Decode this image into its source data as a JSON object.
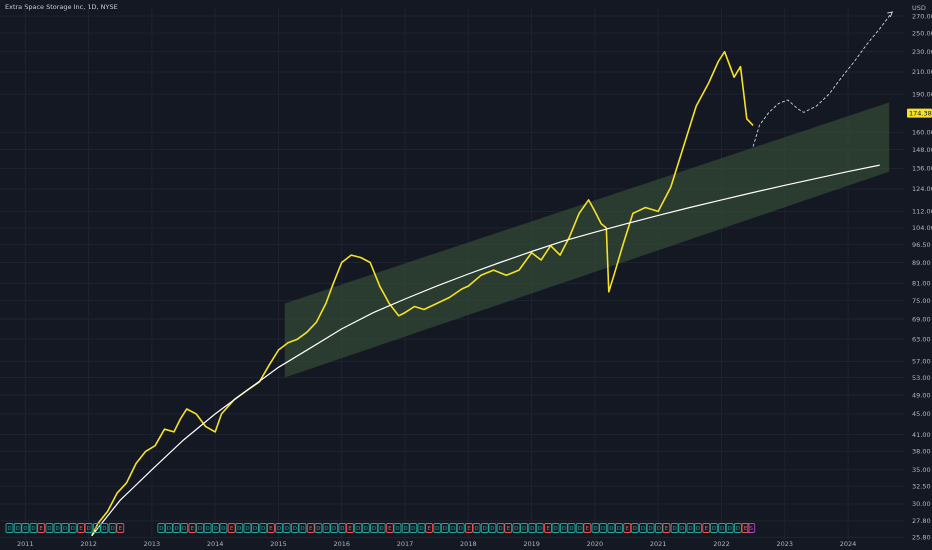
{
  "header": {
    "title": "Extra Space Storage Inc, 1D, NYSE"
  },
  "colors": {
    "background": "#141823",
    "grid": "#1e2330",
    "price": "#f5e12a",
    "curve": "#ffffff",
    "channel": "#3c5a3c",
    "forecast": "#d0d4dc",
    "price_tag_bg": "#f5e12a",
    "dividend_event": "#26a69a",
    "earnings_event": "#ef5350",
    "split_event": "#ab47bc"
  },
  "chart_data": {
    "type": "line",
    "title": "Extra Space Storage Inc, 1D, NYSE",
    "currency_label": "USD",
    "y_scale": "log",
    "ylim": [
      25.5,
      280
    ],
    "xlim": [
      2010.6,
      2024.9
    ],
    "grid": true,
    "x_ticks": [
      "2011",
      "2012",
      "2013",
      "2014",
      "2015",
      "2016",
      "2017",
      "2018",
      "2019",
      "2020",
      "2021",
      "2022",
      "2023",
      "2024"
    ],
    "y_ticks": [
      270.0,
      250.0,
      230.0,
      210.0,
      190.0,
      174.38,
      160.0,
      148.0,
      136.0,
      124.0,
      112.0,
      104.0,
      96.5,
      89.0,
      81.0,
      75.0,
      69.0,
      63.0,
      57.0,
      53.0,
      49.0,
      45.0,
      41.0,
      38.0,
      35.0,
      32.5,
      30.0,
      27.8,
      25.8
    ],
    "y_tick_labels": [
      "270.00",
      "250.00",
      "230.00",
      "210.00",
      "190.00",
      "174.38",
      "160.00",
      "148.00",
      "136.00",
      "124.00",
      "112.00",
      "104.00",
      "96.50",
      "89.00",
      "81.00",
      "75.00",
      "69.00",
      "63.00",
      "57.00",
      "53.00",
      "49.00",
      "45.00",
      "41.00",
      "38.00",
      "35.00",
      "32.50",
      "30.00",
      "27.80",
      "25.80"
    ],
    "last_price": "174.38",
    "series": [
      {
        "kind": "price",
        "x": [
          2012.05,
          2012.15,
          2012.3,
          2012.45,
          2012.6,
          2012.75,
          2012.9,
          2013.05,
          2013.2,
          2013.35,
          2013.45,
          2013.55,
          2013.7,
          2013.85,
          2014.0,
          2014.1,
          2014.3,
          2014.5,
          2014.7,
          2014.85,
          2015.0,
          2015.15,
          2015.3,
          2015.45,
          2015.6,
          2015.75,
          2015.85,
          2016.0,
          2016.15,
          2016.3,
          2016.45,
          2016.6,
          2016.75,
          2016.9,
          2017.0,
          2017.15,
          2017.3,
          2017.5,
          2017.7,
          2017.9,
          2018.0,
          2018.2,
          2018.4,
          2018.6,
          2018.8,
          2019.0,
          2019.15,
          2019.3,
          2019.45,
          2019.6,
          2019.75,
          2019.9,
          2020.0,
          2020.1,
          2020.18,
          2020.22,
          2020.3,
          2020.45,
          2020.6,
          2020.8,
          2021.0,
          2021.2,
          2021.4,
          2021.6,
          2021.8,
          2021.95,
          2022.05,
          2022.2,
          2022.3,
          2022.4,
          2022.5
        ],
        "y": [
          26,
          27.5,
          29,
          31.5,
          33,
          36,
          38,
          39,
          42,
          41.5,
          44,
          46,
          45,
          42.5,
          41.5,
          45,
          48,
          50,
          52,
          56,
          60,
          62,
          63,
          65,
          68,
          74,
          80,
          89,
          92,
          91,
          89,
          80,
          74,
          70,
          71,
          73,
          72,
          74,
          76,
          79,
          80,
          84,
          86,
          84,
          86,
          93,
          90,
          96,
          92,
          100,
          111,
          118,
          112,
          106,
          104,
          78,
          84,
          97,
          111,
          114,
          112,
          125,
          150,
          180,
          200,
          220,
          230,
          205,
          215,
          170,
          165
        ]
      },
      {
        "kind": "trend_curve",
        "x": [
          2012.05,
          2012.5,
          2013.0,
          2013.5,
          2014.0,
          2014.5,
          2015.0,
          2015.5,
          2016.0,
          2016.5,
          2017.0,
          2017.5,
          2018.0,
          2018.5,
          2019.0,
          2019.5,
          2020.0,
          2020.5,
          2021.0,
          2021.5,
          2022.0,
          2022.5,
          2023.0,
          2023.5,
          2024.0,
          2024.5
        ],
        "y": [
          26,
          30.5,
          35,
          40,
          45,
          50,
          55.5,
          60.5,
          66,
          71,
          75.5,
          80,
          84.5,
          89,
          93.5,
          98,
          102,
          106,
          110,
          114,
          118,
          122,
          126,
          130,
          134,
          138
        ]
      },
      {
        "kind": "forecast",
        "x": [
          2022.5,
          2022.6,
          2022.75,
          2022.9,
          2023.05,
          2023.2,
          2023.3,
          2023.5,
          2023.7,
          2023.9,
          2024.1,
          2024.3,
          2024.5,
          2024.7
        ],
        "y": [
          150,
          165,
          175,
          182,
          185,
          178,
          175,
          180,
          190,
          205,
          220,
          238,
          255,
          275
        ]
      }
    ],
    "channel": {
      "x_start": 2015.1,
      "x_end": 2024.65,
      "start_upper": 74,
      "start_lower": 53,
      "end_upper": 183,
      "end_lower": 134
    },
    "event_markers": {
      "D": [
        2010.75,
        2010.88,
        2011.0,
        2011.13,
        2011.38,
        2011.51,
        2011.63,
        2011.75,
        2012.0,
        2012.13,
        2012.25,
        2012.38,
        2013.15,
        2013.27,
        2013.39,
        2013.51,
        2013.76,
        2013.88,
        2014.01,
        2014.13,
        2014.38,
        2014.51,
        2014.63,
        2014.76,
        2015.01,
        2015.13,
        2015.26,
        2015.38,
        2015.63,
        2015.76,
        2015.88,
        2016.01,
        2016.26,
        2016.38,
        2016.51,
        2016.63,
        2016.88,
        2017.01,
        2017.13,
        2017.26,
        2017.51,
        2017.63,
        2017.76,
        2017.88,
        2018.13,
        2018.26,
        2018.38,
        2018.51,
        2018.76,
        2018.88,
        2019.01,
        2019.13,
        2019.38,
        2019.51,
        2019.63,
        2019.76,
        2020.01,
        2020.13,
        2020.26,
        2020.38,
        2020.63,
        2020.76,
        2020.88,
        2021.01,
        2021.26,
        2021.38,
        2021.51,
        2021.63,
        2021.88,
        2022.01,
        2022.13,
        2022.26
      ],
      "E": [
        2011.25,
        2011.88,
        2012.5,
        2013.64,
        2014.26,
        2014.88,
        2015.51,
        2016.13,
        2016.76,
        2017.38,
        2018.01,
        2018.63,
        2019.26,
        2019.88,
        2020.51,
        2021.13,
        2021.76,
        2022.38
      ],
      "S": [
        2022.47
      ]
    }
  }
}
